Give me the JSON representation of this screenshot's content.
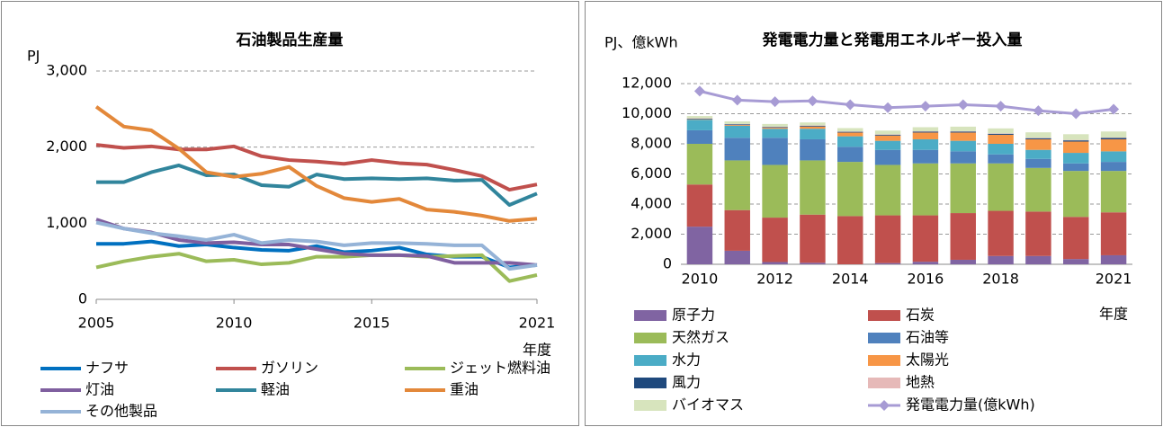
{
  "chart_data": [
    {
      "type": "line",
      "title": "石油製品生産量",
      "y_label": "PJ",
      "x_label": "年度",
      "x": [
        2005,
        2006,
        2007,
        2008,
        2009,
        2010,
        2011,
        2012,
        2013,
        2014,
        2015,
        2016,
        2017,
        2018,
        2019,
        2020,
        2021
      ],
      "xlim": [
        2005,
        2021
      ],
      "xticks": [
        2005,
        2010,
        2015,
        2021
      ],
      "ylim": [
        0,
        3000
      ],
      "yticks": [
        0,
        {
          "value": 1000,
          "label": "1,000"
        },
        {
          "value": 2000,
          "label": "2,000"
        },
        {
          "value": 3000,
          "label": "3,000"
        }
      ],
      "grid": true,
      "legend": "bottom",
      "series": [
        {
          "name": "ナフサ",
          "color": "#0070c0",
          "values": [
            730,
            730,
            760,
            700,
            720,
            680,
            650,
            640,
            700,
            620,
            640,
            680,
            590,
            560,
            560,
            420,
            450
          ]
        },
        {
          "name": "ガソリン",
          "color": "#c0504d",
          "values": [
            2030,
            1990,
            2010,
            1970,
            1970,
            2010,
            1880,
            1830,
            1810,
            1780,
            1830,
            1790,
            1770,
            1700,
            1620,
            1440,
            1510
          ]
        },
        {
          "name": "ジェット燃料油",
          "color": "#9bbb59",
          "values": [
            420,
            500,
            560,
            600,
            500,
            520,
            460,
            480,
            560,
            560,
            580,
            580,
            560,
            570,
            580,
            240,
            320
          ]
        },
        {
          "name": "灯油",
          "color": "#7f5f9f",
          "values": [
            1050,
            930,
            880,
            780,
            740,
            750,
            720,
            720,
            660,
            600,
            580,
            580,
            570,
            480,
            480,
            480,
            450
          ]
        },
        {
          "name": "軽油",
          "color": "#31859c",
          "values": [
            1540,
            1540,
            1670,
            1760,
            1630,
            1640,
            1500,
            1480,
            1640,
            1580,
            1590,
            1580,
            1590,
            1560,
            1570,
            1240,
            1390
          ]
        },
        {
          "name": "重油",
          "color": "#e3883a",
          "values": [
            2530,
            2270,
            2220,
            1980,
            1670,
            1610,
            1650,
            1740,
            1490,
            1330,
            1280,
            1320,
            1180,
            1150,
            1100,
            1030,
            1060
          ]
        },
        {
          "name": "その他製品",
          "color": "#95b3d7",
          "values": [
            1010,
            930,
            870,
            830,
            780,
            850,
            740,
            780,
            760,
            710,
            740,
            740,
            730,
            710,
            710,
            400,
            450
          ]
        }
      ]
    },
    {
      "type": "bar",
      "stacked": true,
      "title": "発電電力量と発電用エネルギー投入量",
      "y_label": "PJ、億kWh",
      "x_label": "年度",
      "categories": [
        "2010",
        null,
        "2012",
        null,
        "2014",
        null,
        "2016",
        null,
        "2018",
        null,
        null,
        "2021"
      ],
      "ylim": [
        0,
        12000
      ],
      "yticks": [
        0,
        {
          "value": 2000,
          "label": "2,000"
        },
        {
          "value": 4000,
          "label": "4,000"
        },
        {
          "value": 6000,
          "label": "6,000"
        },
        {
          "value": 8000,
          "label": "8,000"
        },
        {
          "value": 10000,
          "label": "10,000"
        },
        {
          "value": 12000,
          "label": "12,000"
        }
      ],
      "grid": true,
      "legend": "bottom",
      "series": [
        {
          "name": "原子力",
          "color": "#8064a2",
          "values": [
            2500,
            900,
            150,
            100,
            0,
            80,
            170,
            300,
            550,
            550,
            350,
            600
          ]
        },
        {
          "name": "石炭",
          "color": "#c0504d",
          "values": [
            2800,
            2700,
            2950,
            3200,
            3200,
            3170,
            3080,
            3100,
            3000,
            2950,
            2800,
            2850
          ]
        },
        {
          "name": "天然ガス",
          "color": "#9bbb59",
          "values": [
            2700,
            3300,
            3500,
            3600,
            3600,
            3350,
            3450,
            3300,
            3150,
            2900,
            3050,
            2750
          ]
        },
        {
          "name": "石油等",
          "color": "#4f81bd",
          "values": [
            900,
            1500,
            1800,
            1400,
            1000,
            1000,
            900,
            800,
            600,
            600,
            500,
            600
          ]
        },
        {
          "name": "水力",
          "color": "#4bacc6",
          "values": [
            700,
            800,
            600,
            700,
            700,
            600,
            700,
            700,
            700,
            600,
            700,
            700
          ]
        },
        {
          "name": "太陽光",
          "color": "#f79646",
          "values": [
            30,
            50,
            70,
            150,
            250,
            350,
            450,
            550,
            600,
            700,
            750,
            800
          ]
        },
        {
          "name": "風力",
          "color": "#1f497d",
          "values": [
            40,
            45,
            45,
            45,
            50,
            55,
            60,
            65,
            70,
            75,
            80,
            90
          ]
        },
        {
          "name": "地熱",
          "color": "#e6b9b8",
          "values": [
            25,
            25,
            25,
            25,
            25,
            25,
            25,
            25,
            25,
            30,
            30,
            30
          ]
        },
        {
          "name": "バイオマス",
          "color": "#d7e4bd",
          "values": [
            150,
            170,
            180,
            200,
            220,
            250,
            270,
            300,
            330,
            360,
            380,
            400
          ]
        },
        {
          "name": "発電電力量(億kWh)",
          "type": "line",
          "color": "#a79bd4",
          "values": [
            11500,
            10900,
            10800,
            10850,
            10600,
            10400,
            10500,
            10600,
            10500,
            10200,
            10000,
            10300
          ]
        }
      ]
    }
  ]
}
